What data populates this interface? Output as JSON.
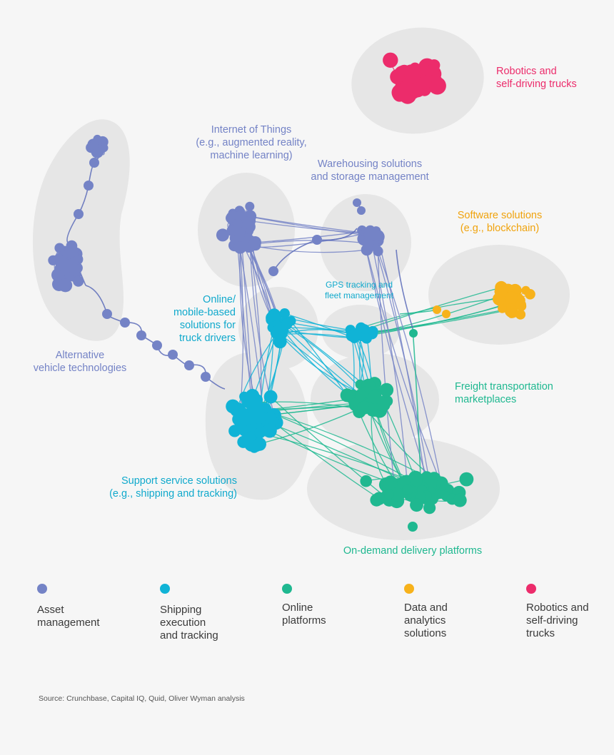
{
  "colors": {
    "asset": "#7483c6",
    "shipping": "#10b3d6",
    "online": "#1fb890",
    "data": "#f7b21b",
    "robotics": "#ec2c6b",
    "cluster_bg": "#e6e6e6",
    "edge_dark": "#5a6bb8"
  },
  "clusters": {
    "robotics": {
      "lines": [
        "Robotics and",
        "self-driving trucks"
      ],
      "color": "#ec2c6b"
    },
    "iot": {
      "lines": [
        "Internet of Things",
        "(e.g., augmented reality,",
        "machine learning)"
      ],
      "color": "#7483c6"
    },
    "warehousing": {
      "lines": [
        "Warehousing solutions",
        "and storage management"
      ],
      "color": "#7483c6"
    },
    "software": {
      "lines": [
        "Software solutions",
        "(e.g., blockchain)"
      ],
      "color": "#f0a30d"
    },
    "gps": {
      "lines": [
        "GPS tracking and",
        "fleet management"
      ],
      "color": "#10a9cc"
    },
    "online_mobile": {
      "lines": [
        "Online/",
        "mobile-based",
        "solutions for",
        "truck drivers"
      ],
      "color": "#10a9cc"
    },
    "alternative": {
      "lines": [
        "Alternative",
        "vehicle technologies"
      ],
      "color": "#7483c6"
    },
    "freight": {
      "lines": [
        "Freight transportation",
        "marketplaces"
      ],
      "color": "#1fb890"
    },
    "support": {
      "lines": [
        "Support service solutions",
        "(e.g., shipping and tracking)"
      ],
      "color": "#10a9cc"
    },
    "ondemand": {
      "lines": [
        "On-demand delivery platforms"
      ],
      "color": "#1fb890"
    }
  },
  "legend": [
    {
      "lines": [
        "Asset",
        "management"
      ],
      "color": "#7483c6"
    },
    {
      "lines": [
        "Shipping",
        "execution",
        "and tracking"
      ],
      "color": "#10b3d6"
    },
    {
      "lines": [
        "Online",
        "platforms"
      ],
      "color": "#1fb890"
    },
    {
      "lines": [
        "Data and",
        "analytics",
        "solutions"
      ],
      "color": "#f7b21b"
    },
    {
      "lines": [
        "Robotics and",
        "self-driving",
        "trucks"
      ],
      "color": "#ec2c6b"
    }
  ],
  "source": "Source: Crunchbase, Capital IQ, Quid, Oliver Wyman analysis"
}
